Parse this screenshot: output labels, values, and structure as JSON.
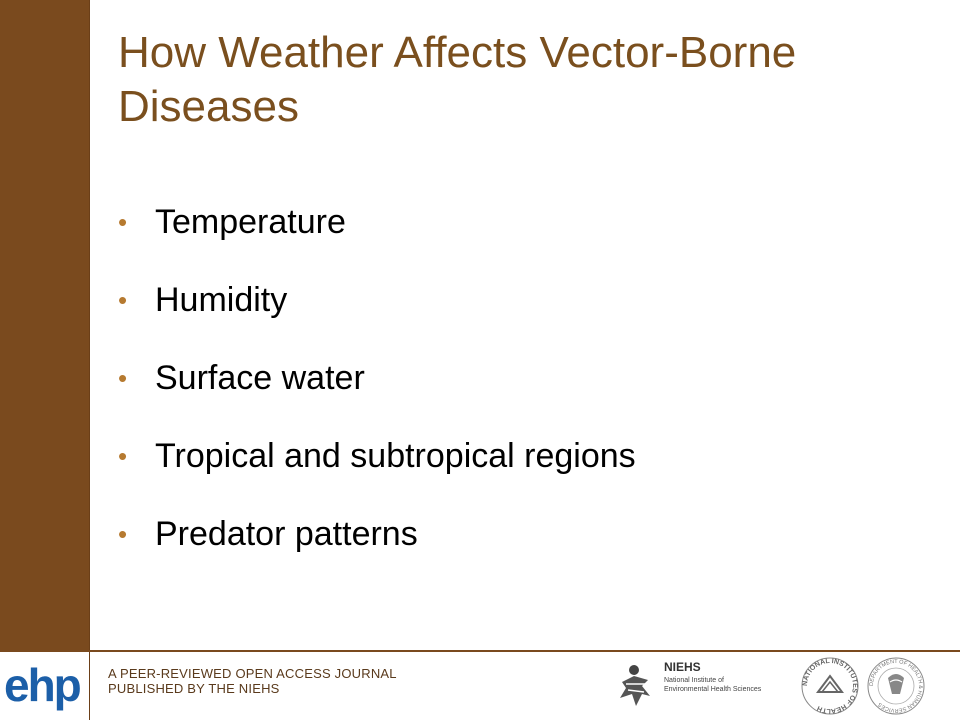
{
  "slide": {
    "title": "How Weather Affects Vector-Borne Diseases",
    "bullets": [
      "Temperature",
      "Humidity",
      "Surface water",
      "Tropical and subtropical regions",
      "Predator patterns"
    ],
    "bullet_glyph": "•"
  },
  "footer": {
    "logo_text": "ehp",
    "journal_line1": "A PEER-REVIEWED OPEN ACCESS JOURNAL",
    "journal_line2": "PUBLISHED BY THE NIEHS",
    "niehs_name": "NIEHS",
    "niehs_line1": "National Institute of",
    "niehs_line2": "Environmental Health Sciences",
    "nih_seal_text": "NATIONAL INSTITUTES OF HEALTH",
    "hhs_seal_text": "DEPARTMENT OF HEALTH & HUMAN SERVICES"
  },
  "colors": {
    "sidebar": "#7a4a1e",
    "title": "#7a4f1e",
    "bullet": "#b67a30",
    "logo": "#1c5fa8"
  },
  "icons": [
    "niehs-logo-icon",
    "nih-seal-icon",
    "hhs-seal-icon"
  ]
}
